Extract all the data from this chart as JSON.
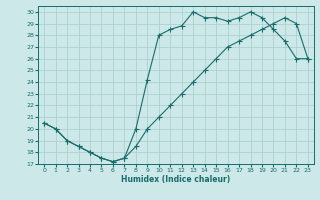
{
  "xlabel": "Humidex (Indice chaleur)",
  "bg_color": "#cce8e8",
  "grid_color": "#a8cccc",
  "line_color": "#1a6b6b",
  "xlim": [
    -0.5,
    23.5
  ],
  "ylim": [
    17,
    30.5
  ],
  "xticks": [
    0,
    1,
    2,
    3,
    4,
    5,
    6,
    7,
    8,
    9,
    10,
    11,
    12,
    13,
    14,
    15,
    16,
    17,
    18,
    19,
    20,
    21,
    22,
    23
  ],
  "yticks": [
    17,
    18,
    19,
    20,
    21,
    22,
    23,
    24,
    25,
    26,
    27,
    28,
    29,
    30
  ],
  "line1_x": [
    0,
    1,
    2,
    3,
    4,
    5,
    6,
    7,
    8,
    9,
    10,
    11,
    12,
    13,
    14,
    15,
    16,
    17,
    18,
    19,
    20,
    21,
    22,
    23
  ],
  "line1_y": [
    20.5,
    20.0,
    19.0,
    18.5,
    18.0,
    17.5,
    17.2,
    17.5,
    18.5,
    20.0,
    21.0,
    22.0,
    23.0,
    24.0,
    25.0,
    26.0,
    27.0,
    27.5,
    28.0,
    28.5,
    29.0,
    29.5,
    29.0,
    26.0
  ],
  "line2_x": [
    0,
    1,
    2,
    3,
    4,
    5,
    6,
    7,
    8,
    9,
    10,
    11,
    12,
    13,
    14,
    15,
    16,
    17,
    18,
    19,
    20,
    21,
    22,
    23
  ],
  "line2_y": [
    20.5,
    20.0,
    19.0,
    18.5,
    18.0,
    17.5,
    17.2,
    17.5,
    20.0,
    24.2,
    28.0,
    28.5,
    28.8,
    30.0,
    29.5,
    29.5,
    29.2,
    29.5,
    30.0,
    29.5,
    28.5,
    27.5,
    26.0,
    26.0
  ]
}
